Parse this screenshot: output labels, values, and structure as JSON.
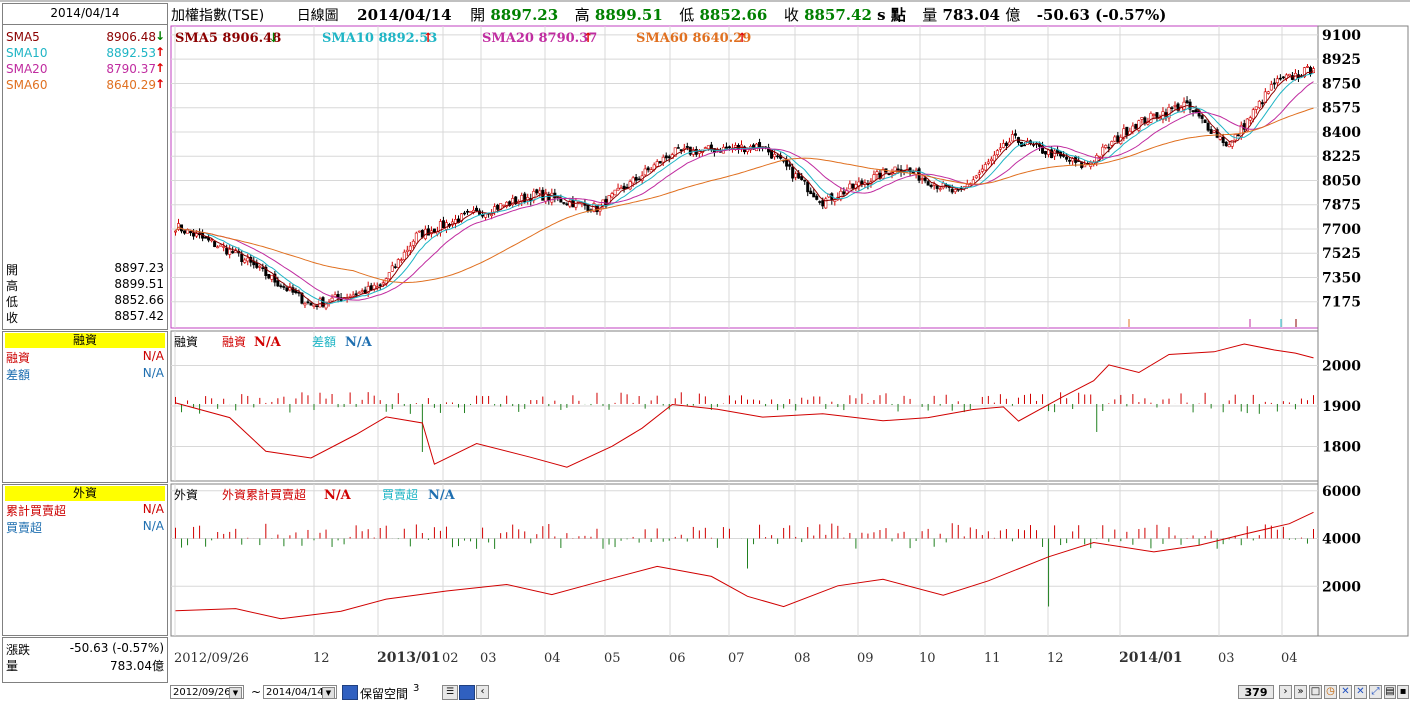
{
  "left": {
    "date": "2014/04/14",
    "sma": [
      {
        "label": "SMA5",
        "value": "8906.48",
        "arrow": "down",
        "color": "#8b0000"
      },
      {
        "label": "SMA10",
        "value": "8892.53",
        "arrow": "up",
        "color": "#1fb5c5"
      },
      {
        "label": "SMA20",
        "value": "8790.37",
        "arrow": "up",
        "color": "#c02ca0"
      },
      {
        "label": "SMA60",
        "value": "8640.29",
        "arrow": "up",
        "color": "#e07020"
      }
    ],
    "ohlc": [
      {
        "label": "開",
        "value": "8897.23"
      },
      {
        "label": "高",
        "value": "8899.51"
      },
      {
        "label": "低",
        "value": "8852.66"
      },
      {
        "label": "收",
        "value": "8857.42"
      }
    ],
    "margin_title": "融資",
    "margin_rows": [
      {
        "label": "融資",
        "value": "N/A",
        "color": "#cc0000"
      },
      {
        "label": "差額",
        "value": "N/A",
        "color": "#1f6fb0"
      }
    ],
    "foreign_title": "外資",
    "foreign_rows": [
      {
        "label": "累計買賣超",
        "value": "N/A",
        "color": "#cc0000"
      },
      {
        "label": "買賣超",
        "value": "N/A",
        "color": "#1f6fb0"
      }
    ],
    "change_label": "漲跌",
    "change_value": "-50.63 (-0.57%)",
    "volume_label": "量",
    "volume_value": "783.04億"
  },
  "header": {
    "name": "加權指數(TSE)",
    "period": "日線圖",
    "date": "2014/04/14",
    "open_label": "開",
    "open": "8897.23",
    "high_label": "高",
    "high": "8899.51",
    "low_label": "低",
    "low": "8852.66",
    "close_label": "收",
    "close": "8857.42",
    "unit": "s 點",
    "volume_label": "量",
    "volume": "783.04",
    "volume_unit": "億",
    "change": "-50.63 (-0.57%)"
  },
  "main_legend": [
    {
      "text": "SMA5 8906.48",
      "arrow": "down",
      "color": "#8b0000"
    },
    {
      "text": "SMA10 8892.53",
      "arrow": "up",
      "color": "#1fb5c5"
    },
    {
      "text": "SMA20 8790.37",
      "arrow": "up",
      "color": "#c02ca0"
    },
    {
      "text": "SMA60 8640.29",
      "arrow": "up",
      "color": "#e07020"
    }
  ],
  "margin_legend": {
    "title": "融資",
    "a": "融資",
    "a_val": "N/A",
    "b": "差額",
    "b_val": "N/A"
  },
  "foreign_legend": {
    "title": "外資",
    "a": "外資累計買賣超",
    "a_val": "N/A",
    "b": "買賣超",
    "b_val": "N/A"
  },
  "x_axis_labels": [
    "2012/09/26",
    "12",
    "2013/01",
    "02",
    "03",
    "04",
    "05",
    "06",
    "07",
    "08",
    "09",
    "10",
    "11",
    "12",
    "2014/01",
    "03",
    "04"
  ],
  "footer": {
    "from_date": "2012/09/26",
    "tilde": "~",
    "to_date": "2014/04/14",
    "reserve_label": "保留空間",
    "reserve_value": "3",
    "count": "379"
  },
  "chart_data": [
    {
      "type": "candlestick",
      "title": "加權指數(TSE) 日線圖",
      "y_ticks": [
        9100,
        8925,
        8750,
        8575,
        8400,
        8225,
        8050,
        7875,
        7700,
        7525,
        7350,
        7175
      ],
      "ylim": [
        7000,
        9150
      ],
      "x_ticks": [
        "2012/09/26",
        "12",
        "2013/01",
        "02",
        "03",
        "04",
        "05",
        "06",
        "07",
        "08",
        "09",
        "10",
        "11",
        "12",
        "2014/01",
        "03",
        "04"
      ],
      "close_path": [
        [
          "2012/09/26",
          7720
        ],
        [
          "2012/10",
          7520
        ],
        [
          "2012/11",
          7150
        ],
        [
          "2012/11 end",
          7280
        ],
        [
          "2012/12",
          7650
        ],
        [
          "2013/01",
          7780
        ],
        [
          "2013/02",
          7880
        ],
        [
          "2013/03",
          7950
        ],
        [
          "2013/04",
          7850
        ],
        [
          "2013/05",
          8250
        ],
        [
          "2013/06",
          8300
        ],
        [
          "2013/07",
          7900
        ],
        [
          "2013/08",
          8150
        ],
        [
          "2013/09",
          7950
        ],
        [
          "2013/10",
          8350
        ],
        [
          "2013/11",
          8150
        ],
        [
          "2013/12",
          8450
        ],
        [
          "2014/01",
          8600
        ],
        [
          "2014/02",
          8300
        ],
        [
          "2014/03",
          8750
        ],
        [
          "2014/04",
          8857.42
        ]
      ],
      "series": [
        {
          "name": "SMA5",
          "last": 8906.48
        },
        {
          "name": "SMA10",
          "last": 8892.53
        },
        {
          "name": "SMA20",
          "last": 8790.37
        },
        {
          "name": "SMA60",
          "last": 8640.29
        }
      ]
    },
    {
      "type": "bar",
      "title": "融資",
      "y_ticks": [
        2000,
        1900,
        1800
      ],
      "ylim": [
        1720,
        2080
      ],
      "series": [
        {
          "name": "融資"
        },
        {
          "name": "差額"
        }
      ]
    },
    {
      "type": "bar",
      "title": "外資",
      "y_ticks": [
        6000,
        4000,
        2000
      ],
      "ylim": [
        0,
        6200
      ],
      "series": [
        {
          "name": "外資累計買賣超"
        },
        {
          "name": "買賣超"
        }
      ]
    }
  ]
}
